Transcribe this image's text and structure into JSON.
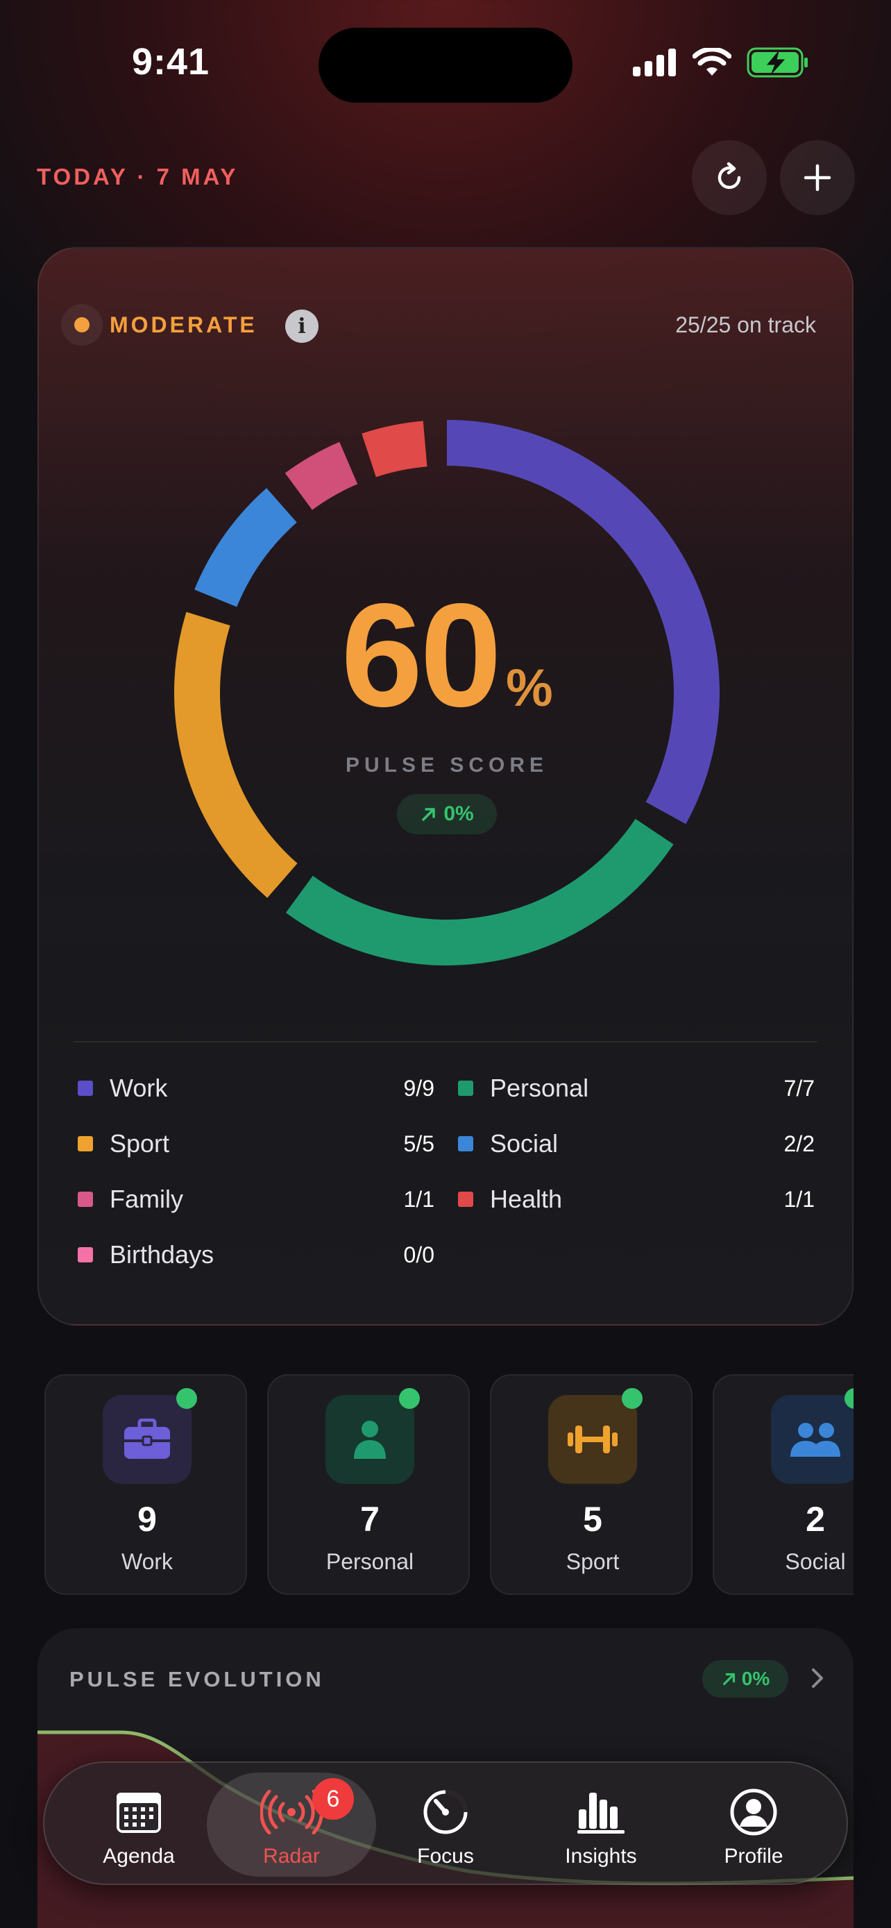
{
  "status_bar": {
    "time": "9:41"
  },
  "header": {
    "date": "TODAY · 7 MAY"
  },
  "pulse": {
    "status": "MODERATE",
    "on_track": "25/25 on track",
    "score": "60",
    "score_unit": "%",
    "score_label": "PULSE SCORE",
    "delta": "0%"
  },
  "chart_data": {
    "type": "pie",
    "variant": "donut",
    "categories": [
      "Work",
      "Personal",
      "Sport",
      "Social",
      "Family",
      "Health",
      "Birthdays"
    ],
    "values": [
      9,
      7,
      5,
      2,
      1,
      1,
      0
    ],
    "colors": [
      "#5548b6",
      "#1f9a6f",
      "#e39a2a",
      "#3b86d8",
      "#d0507a",
      "#e04a48",
      "#f06aa0"
    ]
  },
  "legend": [
    {
      "name": "Work",
      "count": "9/9",
      "color": "#5a4fc8"
    },
    {
      "name": "Personal",
      "count": "7/7",
      "color": "#1f9a6f"
    },
    {
      "name": "Sport",
      "count": "5/5",
      "color": "#f0a22e"
    },
    {
      "name": "Social",
      "count": "2/2",
      "color": "#3b86d8"
    },
    {
      "name": "Family",
      "count": "1/1",
      "color": "#d9588a"
    },
    {
      "name": "Health",
      "count": "1/1",
      "color": "#e04a48"
    },
    {
      "name": "Birthdays",
      "count": "0/0",
      "color": "#f472a8"
    }
  ],
  "tiles": [
    {
      "count": "9",
      "label": "Work",
      "icon": "briefcase-icon"
    },
    {
      "count": "7",
      "label": "Personal",
      "icon": "person-icon"
    },
    {
      "count": "5",
      "label": "Sport",
      "icon": "dumbbell-icon"
    },
    {
      "count": "2",
      "label": "Social",
      "icon": "people-icon"
    }
  ],
  "evolution": {
    "title": "PULSE EVOLUTION",
    "delta": "0%"
  },
  "tab_bar": {
    "tabs": [
      {
        "label": "Agenda",
        "icon": "calendar-icon"
      },
      {
        "label": "Radar",
        "icon": "radar-icon",
        "badge": "6"
      },
      {
        "label": "Focus",
        "icon": "gauge-icon"
      },
      {
        "label": "Insights",
        "icon": "bar-chart-icon"
      },
      {
        "label": "Profile",
        "icon": "profile-icon"
      }
    ]
  }
}
